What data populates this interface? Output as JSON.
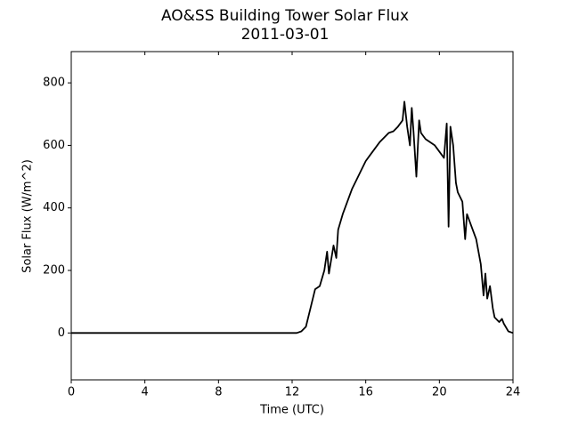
{
  "chart_data": {
    "type": "line",
    "title": "AO&SS Building Tower Solar Flux",
    "subtitle": "2011-03-01",
    "x_label": "Time (UTC)",
    "y_label": "Solar Flux (W/m^2)",
    "x": [
      0,
      12,
      12.25,
      12.5,
      12.75,
      13.0,
      13.25,
      13.5,
      13.75,
      13.9,
      14.0,
      14.25,
      14.4,
      14.5,
      14.75,
      15.0,
      15.25,
      15.5,
      15.75,
      16.0,
      16.25,
      16.5,
      16.75,
      17.0,
      17.25,
      17.5,
      17.75,
      18.0,
      18.1,
      18.25,
      18.4,
      18.5,
      18.6,
      18.75,
      18.9,
      19.0,
      19.25,
      19.5,
      19.75,
      20.0,
      20.25,
      20.4,
      20.5,
      20.6,
      20.75,
      20.9,
      21.0,
      21.25,
      21.4,
      21.5,
      21.75,
      22.0,
      22.25,
      22.4,
      22.5,
      22.6,
      22.75,
      22.9,
      23.0,
      23.25,
      23.4,
      23.5,
      23.75,
      24
    ],
    "values": [
      0,
      0,
      0,
      5,
      20,
      80,
      140,
      150,
      200,
      260,
      190,
      280,
      240,
      330,
      380,
      420,
      460,
      490,
      520,
      550,
      570,
      590,
      610,
      625,
      640,
      645,
      660,
      680,
      740,
      660,
      600,
      720,
      640,
      500,
      680,
      640,
      620,
      610,
      600,
      580,
      560,
      670,
      340,
      660,
      600,
      480,
      450,
      420,
      300,
      380,
      340,
      300,
      220,
      120,
      190,
      110,
      150,
      80,
      50,
      35,
      45,
      30,
      5,
      0
    ],
    "color": "#000000",
    "xlim": [
      0,
      24
    ],
    "xticks": [
      0,
      4,
      8,
      12,
      16,
      20,
      24
    ],
    "ylim": [
      -150,
      900
    ],
    "yticks": [
      0,
      200,
      400,
      600,
      800
    ]
  }
}
